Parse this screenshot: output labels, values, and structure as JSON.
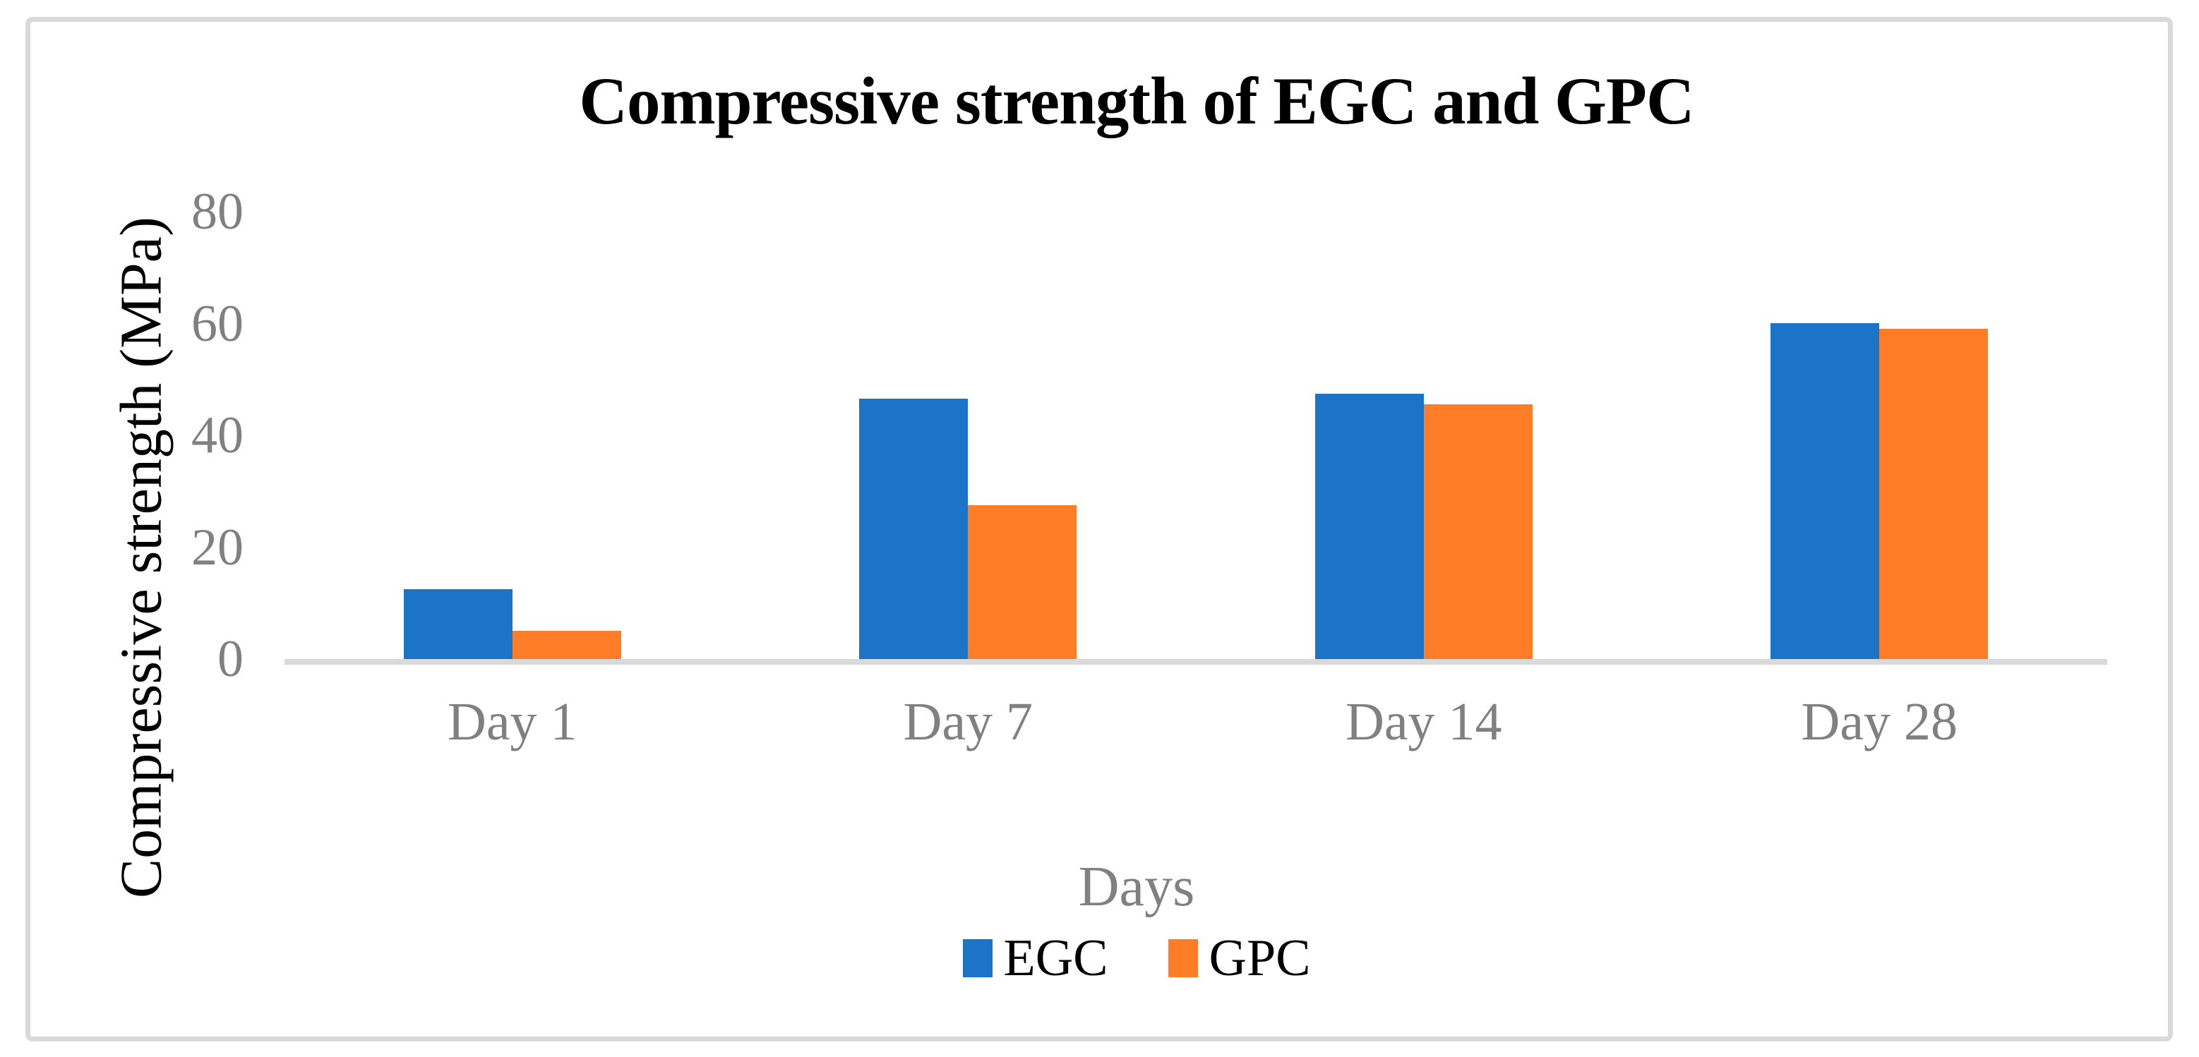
{
  "chart_data": {
    "type": "bar",
    "title": "Compressive strength of EGC and GPC",
    "xlabel": "Days",
    "ylabel": "Compressive strength (MPa)",
    "categories": [
      "Day 1",
      "Day 7",
      "Day 14",
      "Day 28"
    ],
    "series": [
      {
        "name": "EGC",
        "color": "#1b74c8",
        "values": [
          12.5,
          46.5,
          47.5,
          60
        ]
      },
      {
        "name": "GPC",
        "color": "#ff7d26",
        "values": [
          5,
          27.5,
          45.5,
          59
        ]
      }
    ],
    "yticks": [
      0,
      20,
      40,
      60,
      80
    ],
    "ylim": [
      0,
      80
    ],
    "grid": false,
    "legend_position": "bottom-center",
    "colors": {
      "title_text": "#000000",
      "y_axis_title_text": "#000000",
      "tick_label_text": "#808080",
      "category_label_text": "#808080",
      "x_axis_title_text": "#808080",
      "legend_text": "#000000",
      "axis_line": "#d9d9d9",
      "frame_border": "#d9d9d9",
      "background": "#ffffff"
    }
  }
}
